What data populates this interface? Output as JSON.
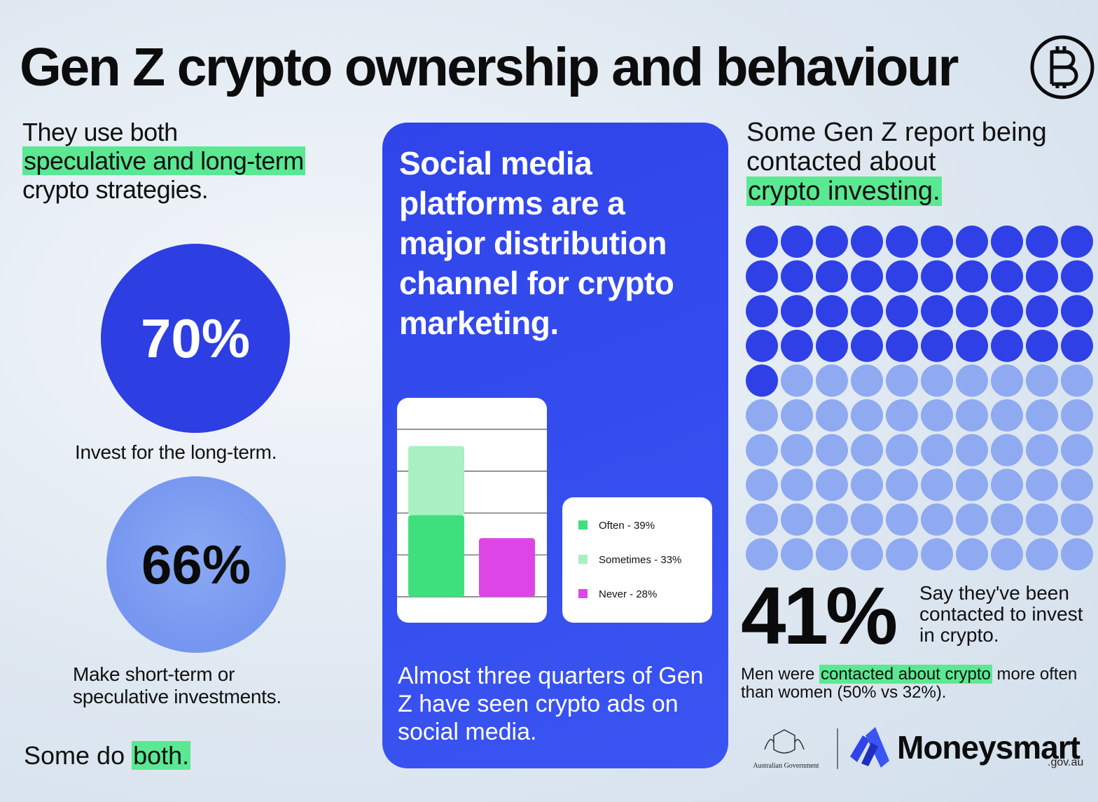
{
  "title": "Gen Z crypto ownership and behaviour",
  "left": {
    "intro": [
      "They use both",
      "speculative and long-term",
      "crypto strategies."
    ],
    "stats": [
      {
        "value": 70,
        "label": "70%",
        "caption": "Invest for the long-term."
      },
      {
        "value": 66,
        "label": "66%",
        "caption": "Make short-term or speculative investments."
      }
    ],
    "footer": [
      "Some do",
      "both."
    ]
  },
  "center": {
    "headline": "Social media platforms are a major distribution channel for crypto marketing.",
    "footer": "Almost three quarters of Gen Z have seen crypto ads on social media."
  },
  "chart_data": {
    "type": "bar",
    "stacked": true,
    "categories": [
      null,
      null
    ],
    "series": [
      {
        "name": "Often - 39%",
        "color": "#3ee07e",
        "values": [
          39,
          null
        ]
      },
      {
        "name": "Sometimes - 33%",
        "color": "#a8f0c2",
        "values": [
          33,
          null
        ]
      },
      {
        "name": "Never - 28%",
        "color": "#dd45e6",
        "values": [
          null,
          28
        ]
      }
    ],
    "ylim": [
      0,
      95
    ],
    "yticks": [
      0,
      20,
      40,
      60,
      80
    ],
    "grid": true
  },
  "right": {
    "heading": [
      "Some Gen Z report being contacted about",
      "crypto investing."
    ],
    "stat": {
      "value": 41,
      "label": "41%"
    },
    "stat_caption": "Say they've been contacted to invest in crypto.",
    "note": [
      "Men were",
      "contacted about crypto",
      "more often than women (50% vs 32%)."
    ]
  },
  "logos": {
    "government": "Australian Government",
    "brand": "Moneysmart",
    "domain": ".gov.au"
  }
}
